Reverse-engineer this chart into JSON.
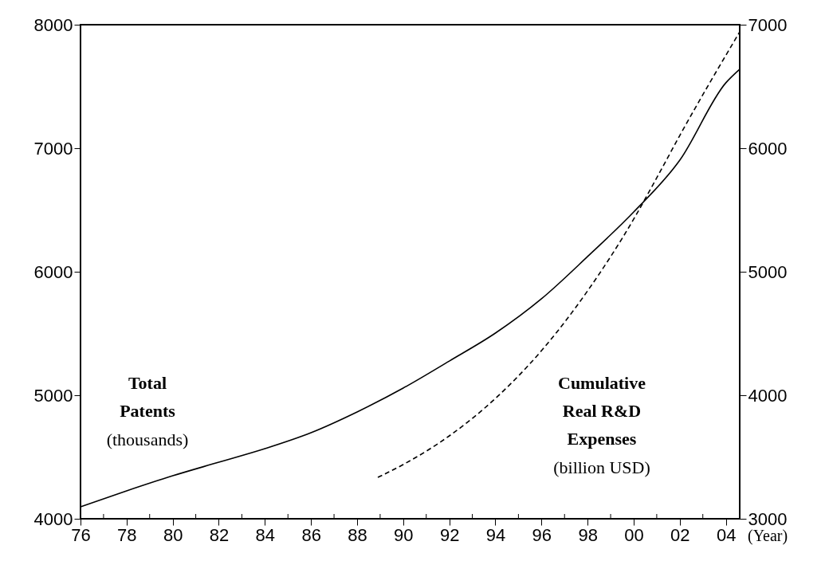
{
  "chart_data": {
    "type": "line",
    "xlabel": "(Year)",
    "xlim": [
      1976,
      2004.6
    ],
    "xticks": [
      {
        "value": 1976,
        "label": "76"
      },
      {
        "value": 1977,
        "label": null
      },
      {
        "value": 1978,
        "label": "78"
      },
      {
        "value": 1979,
        "label": null
      },
      {
        "value": 1980,
        "label": "80"
      },
      {
        "value": 1981,
        "label": null
      },
      {
        "value": 1982,
        "label": "82"
      },
      {
        "value": 1983,
        "label": null
      },
      {
        "value": 1984,
        "label": "84"
      },
      {
        "value": 1985,
        "label": null
      },
      {
        "value": 1986,
        "label": "86"
      },
      {
        "value": 1987,
        "label": null
      },
      {
        "value": 1988,
        "label": "88"
      },
      {
        "value": 1989,
        "label": null
      },
      {
        "value": 1990,
        "label": "90"
      },
      {
        "value": 1991,
        "label": null
      },
      {
        "value": 1992,
        "label": "92"
      },
      {
        "value": 1993,
        "label": null
      },
      {
        "value": 1994,
        "label": "94"
      },
      {
        "value": 1995,
        "label": null
      },
      {
        "value": 1996,
        "label": "96"
      },
      {
        "value": 1997,
        "label": null
      },
      {
        "value": 1998,
        "label": "98"
      },
      {
        "value": 1999,
        "label": null
      },
      {
        "value": 2000,
        "label": "00"
      },
      {
        "value": 2001,
        "label": null
      },
      {
        "value": 2002,
        "label": "02"
      },
      {
        "value": 2003,
        "label": null
      },
      {
        "value": 2004,
        "label": "04"
      }
    ],
    "ylim": [
      4000,
      8000
    ],
    "yticks": [
      4000,
      5000,
      6000,
      7000,
      8000
    ],
    "y2lim": [
      3000,
      7000
    ],
    "y2ticks": [
      3000,
      4000,
      5000,
      6000,
      7000
    ],
    "grid": false,
    "annotations": [
      "(thousands)",
      "(billion USD)"
    ],
    "series": [
      {
        "name": "Total Patents",
        "color": "#000000",
        "line_style": "solid",
        "x": [
          1976,
          1978,
          1980,
          1982,
          1984,
          1986,
          1988,
          1990,
          1992,
          1994,
          1996,
          1998,
          2000,
          2002,
          2004,
          2004.6
        ],
        "values": [
          4097,
          4226,
          4348,
          4458,
          4568,
          4697,
          4865,
          5058,
          5277,
          5503,
          5781,
          6123,
          6484,
          6903,
          7530,
          7640
        ]
      },
      {
        "name": "Cumulative Real R&D Expenses",
        "color": "#000000",
        "line_style": "dashed",
        "axis": "y2",
        "x": [
          1988.9,
          1990,
          1992,
          1994,
          1996,
          1998,
          2000,
          2001,
          2002,
          2004.6
        ],
        "values": [
          3335,
          3439,
          3671,
          3974,
          4361,
          4845,
          5426,
          5760,
          6103,
          6942
        ]
      }
    ]
  }
}
